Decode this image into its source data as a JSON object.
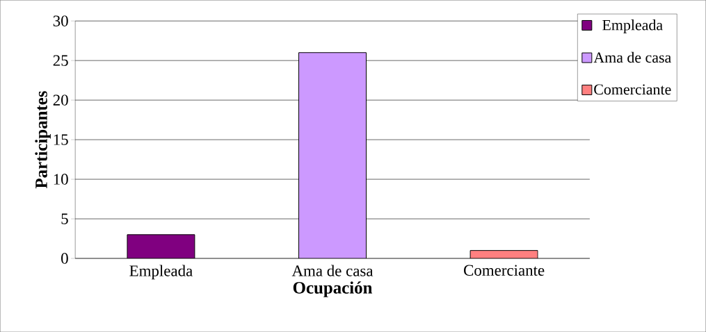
{
  "chart_data": {
    "type": "bar",
    "xlabel": "Ocupación",
    "ylabel": "Participantes",
    "categories": [
      "Empleada",
      "Ama de casa",
      "Comerciante"
    ],
    "series": [
      {
        "name": "Empleada",
        "color": "#800080",
        "values": [
          3,
          null,
          null
        ]
      },
      {
        "name": "Ama de casa",
        "color": "#cc99ff",
        "values": [
          null,
          26,
          null
        ]
      },
      {
        "name": "Comerciante",
        "color": "#ff8080",
        "values": [
          null,
          null,
          1
        ]
      }
    ],
    "ylim": [
      0,
      30
    ],
    "yticks": [
      0,
      5,
      10,
      15,
      20,
      25,
      30
    ],
    "grid": "y",
    "legend": "right"
  }
}
